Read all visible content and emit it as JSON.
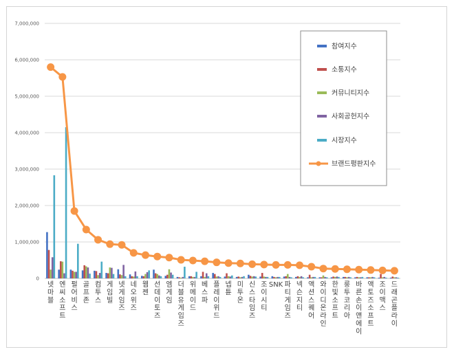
{
  "chart_data": {
    "type": "bar",
    "title": "",
    "xlabel": "",
    "ylabel": "",
    "ylim": [
      0,
      7000000
    ],
    "yticks": [
      0,
      1000000,
      2000000,
      3000000,
      4000000,
      5000000,
      6000000,
      7000000
    ],
    "ytick_labels": [
      "0",
      "1,000,000",
      "2,000,000",
      "3,000,000",
      "4,000,000",
      "5,000,000",
      "6,000,000",
      "7,000,000"
    ],
    "legend_position": "top-right",
    "categories": [
      "넷마블",
      "엔씨소프트",
      "펄어비스",
      "골프존",
      "컴투스",
      "게임빌",
      "넷게임즈",
      "네오위즈",
      "웹젠",
      "선데이토즈",
      "엠게임",
      "더블유게임즈",
      "위메이드",
      "베스파",
      "플레이위드",
      "넵튠",
      "미투온",
      "신스타임즈",
      "조이시티",
      "SNK",
      "파티게임즈",
      "넥슨지티",
      "액션스퀘어",
      "와이디온라인",
      "한빛소프트",
      "룽투코리아",
      "바른손이앤에이",
      "액토즈소프트",
      "조이맥스",
      "드래곤플라이"
    ],
    "series": [
      {
        "name": "참여지수",
        "kind": "bar",
        "color": "#4472c4",
        "values": [
          1270000,
          240000,
          240000,
          220000,
          210000,
          150000,
          250000,
          110000,
          70000,
          240000,
          70000,
          40000,
          60000,
          60000,
          150000,
          50000,
          40000,
          100000,
          50000,
          60000,
          50000,
          40000,
          30000,
          30000,
          30000,
          40000,
          30000,
          30000,
          20000,
          20000
        ]
      },
      {
        "name": "소통지수",
        "kind": "bar",
        "color": "#c0504d",
        "values": [
          780000,
          470000,
          210000,
          360000,
          200000,
          140000,
          110000,
          60000,
          60000,
          140000,
          100000,
          30000,
          60000,
          180000,
          120000,
          140000,
          50000,
          70000,
          150000,
          40000,
          60000,
          60000,
          100000,
          30000,
          50000,
          40000,
          40000,
          30000,
          120000,
          50000
        ]
      },
      {
        "name": "커뮤니티지수",
        "kind": "bar",
        "color": "#9bbb59",
        "values": [
          240000,
          460000,
          180000,
          330000,
          90000,
          300000,
          90000,
          50000,
          120000,
          120000,
          250000,
          20000,
          40000,
          40000,
          50000,
          60000,
          30000,
          50000,
          50000,
          30000,
          120000,
          40000,
          30000,
          80000,
          40000,
          30000,
          30000,
          30000,
          30000,
          30000
        ]
      },
      {
        "name": "사회공헌지수",
        "kind": "bar",
        "color": "#8064a2",
        "values": [
          580000,
          140000,
          180000,
          300000,
          150000,
          290000,
          370000,
          190000,
          170000,
          80000,
          160000,
          40000,
          40000,
          140000,
          60000,
          50000,
          40000,
          60000,
          40000,
          40000,
          40000,
          60000,
          40000,
          40000,
          50000,
          40000,
          30000,
          40000,
          40000,
          30000
        ]
      },
      {
        "name": "시장지수",
        "kind": "bar",
        "color": "#4bacc6",
        "values": [
          2830000,
          4150000,
          950000,
          130000,
          460000,
          120000,
          60000,
          60000,
          220000,
          60000,
          100000,
          320000,
          180000,
          60000,
          40000,
          80000,
          60000,
          50000,
          40000,
          40000,
          30000,
          30000,
          40000,
          30000,
          40000,
          30000,
          40000,
          30000,
          20000,
          20000
        ]
      },
      {
        "name": "브랜드평판지수",
        "kind": "line",
        "color": "#f79646",
        "values": [
          5800000,
          5530000,
          1850000,
          1340000,
          1060000,
          940000,
          920000,
          700000,
          640000,
          600000,
          570000,
          510000,
          490000,
          470000,
          440000,
          420000,
          410000,
          390000,
          380000,
          370000,
          370000,
          360000,
          320000,
          270000,
          260000,
          250000,
          240000,
          230000,
          220000,
          210000
        ]
      }
    ]
  }
}
